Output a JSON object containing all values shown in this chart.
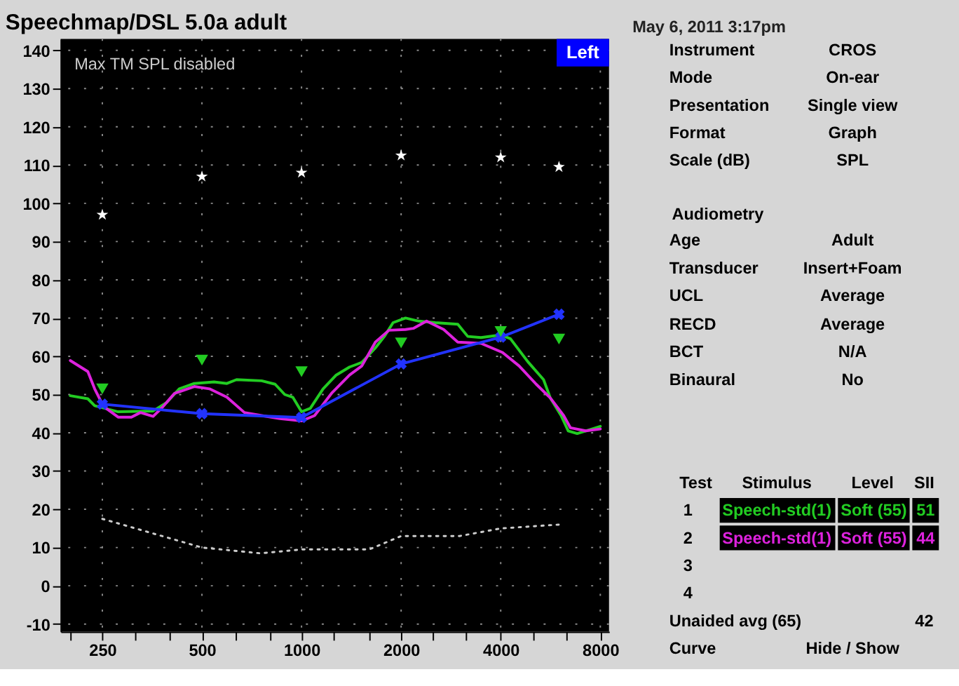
{
  "chart_data": {
    "type": "line",
    "title": "Speechmap/DSL 5.0a adult",
    "log": "x",
    "xlim": [
      187,
      8500
    ],
    "ylim": [
      -12,
      143
    ],
    "grid": true,
    "xticks": [
      {
        "value": 200,
        "label": null
      },
      250,
      {
        "value": 315,
        "label": null
      },
      {
        "value": 400,
        "label": null
      },
      500,
      {
        "value": 630,
        "label": null
      },
      {
        "value": 800,
        "label": null
      },
      1000,
      {
        "value": 1250,
        "label": null
      },
      {
        "value": 1600,
        "label": null
      },
      2000,
      {
        "value": 2500,
        "label": null
      },
      {
        "value": 3150,
        "label": null
      },
      4000,
      {
        "value": 5000,
        "label": null
      },
      {
        "value": 6300,
        "label": null
      },
      8000
    ],
    "yticks": [
      -10,
      0,
      10,
      20,
      30,
      40,
      50,
      60,
      70,
      80,
      90,
      100,
      110,
      120,
      130,
      140
    ],
    "series": [
      {
        "color": "#22cc22",
        "x": [
          200,
          226,
          237,
          279,
          356,
          391,
          427,
          474,
          544,
          595,
          636,
          758,
          832,
          890,
          941,
          1000,
          1063,
          1162,
          1273,
          1397,
          1522,
          1672,
          1780,
          1891,
          2062,
          2262,
          2535,
          2967,
          3180,
          3488,
          4000,
          4280,
          4830,
          5390,
          5650,
          6090,
          6400,
          6810,
          7230,
          8000
        ],
        "values": [
          49.7,
          48.9,
          47.1,
          45.5,
          45.7,
          47.9,
          51.5,
          52.9,
          53.3,
          52.9,
          53.9,
          53.6,
          52.7,
          50,
          49.3,
          45.5,
          46.4,
          51.5,
          55.1,
          57.2,
          58.4,
          62.2,
          65.2,
          68.8,
          70,
          69.2,
          68.8,
          68.4,
          65.2,
          64.9,
          65.6,
          64.6,
          58.6,
          53.9,
          49.1,
          44.5,
          40.5,
          39.8,
          40.5,
          41.7
        ]
      },
      {
        "color": "#dd22dd",
        "x": [
          200,
          226,
          237,
          252,
          279,
          306,
          326,
          356,
          380,
          413,
          474,
          527,
          595,
          672,
          758,
          860,
          1000,
          1095,
          1237,
          1397,
          1522,
          1672,
          1837,
          2062,
          2177,
          2388,
          2690,
          2967,
          3488,
          4050,
          4545,
          5120,
          5650,
          6200,
          6500,
          7230,
          8000
        ],
        "values": [
          58.9,
          56,
          51.5,
          46.9,
          44.1,
          44.1,
          45.3,
          44.3,
          46.7,
          50.3,
          52.1,
          51.5,
          49.3,
          45.3,
          44.5,
          43.7,
          43.1,
          44.5,
          50.5,
          55.1,
          57.5,
          63.7,
          66.8,
          67,
          67.3,
          69.2,
          67,
          63.7,
          63.4,
          61,
          57.5,
          52.7,
          49.1,
          44.5,
          41.3,
          40.5,
          41
        ]
      },
      {
        "color": "#2233ff",
        "marker": "cross",
        "x": [
          250,
          500,
          1000,
          2000,
          4000,
          6000
        ],
        "values": [
          47.5,
          45,
          44,
          58,
          65,
          71
        ]
      },
      {
        "type": "scatter",
        "color": "#22cc22",
        "marker": "triangle",
        "x": [
          250,
          500,
          1000,
          2000,
          4000,
          6000
        ],
        "values": [
          51.5,
          59,
          56,
          63.5,
          66.5,
          64.5
        ]
      },
      {
        "type": "scatter",
        "color": "#ffffff",
        "marker": "star",
        "x": [
          250,
          500,
          1000,
          2000,
          4000,
          6000
        ],
        "values": [
          97,
          107,
          108,
          112.5,
          112,
          109.5
        ]
      },
      {
        "color": "#cccccc",
        "line_style": "dotted",
        "x": [
          250,
          500,
          750,
          1000,
          1600,
          2000,
          3000,
          4000,
          6000
        ],
        "values": [
          17.5,
          10,
          8.5,
          9.5,
          9.5,
          13,
          13,
          15,
          16
        ]
      }
    ],
    "annotations": [
      "May 6, 2011 3:17pm",
      "Max TM SPL disabled",
      "Left",
      "Instrument",
      "CROS",
      "Mode",
      "On-ear",
      "Presentation",
      "Single view",
      "Format",
      "Graph",
      "Scale (dB)",
      "SPL",
      "Audiometry",
      "Age",
      "Adult",
      "Transducer",
      "Insert+Foam",
      "UCL",
      "Average",
      "RECD",
      "Average",
      "BCT",
      "N/A",
      "Binaural",
      "No",
      "Test",
      "Stimulus",
      "Level",
      "SII",
      "1",
      "Speech-std(1)",
      "Soft (55)",
      "51",
      "2",
      "Speech-std(1)",
      "Soft (55)",
      "44",
      "3",
      "4",
      "Unaided avg (65)",
      "42",
      "Curve",
      "Hide / Show"
    ]
  }
}
